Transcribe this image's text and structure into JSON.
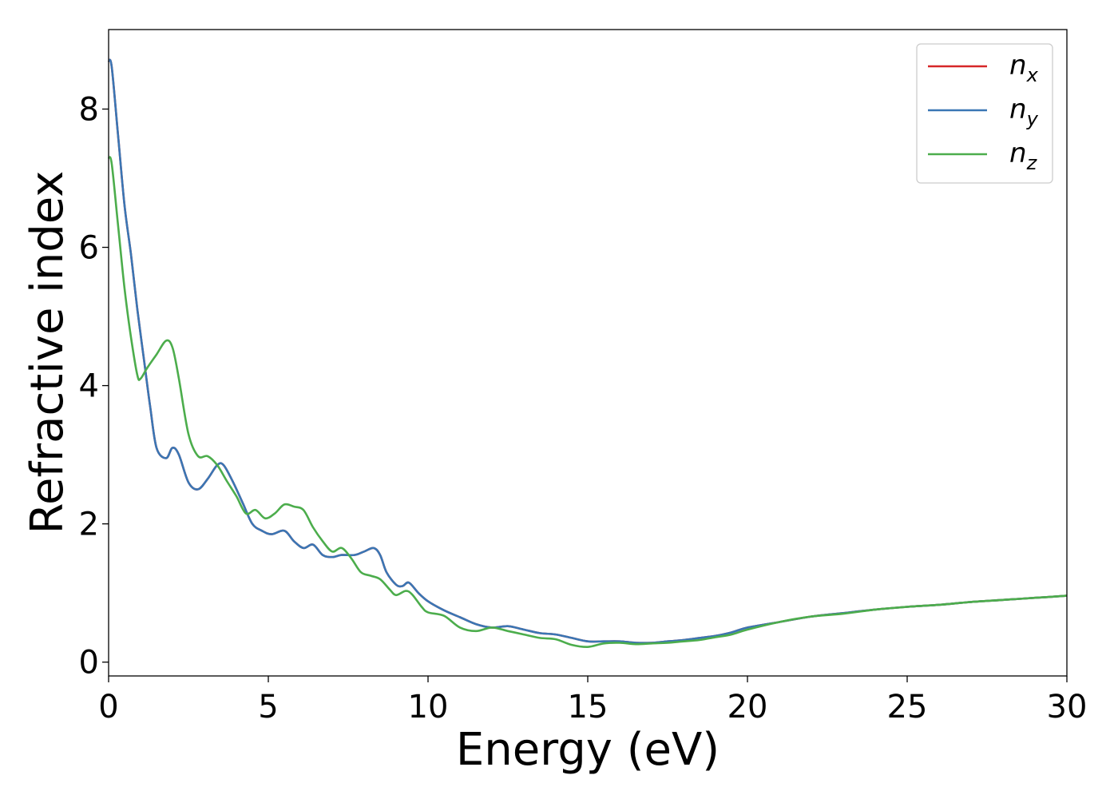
{
  "chart_data": {
    "type": "line",
    "xlabel": "Energy (eV)",
    "ylabel": "Refractive index",
    "xlim": [
      0,
      30
    ],
    "ylim": [
      -0.2,
      9.15
    ],
    "xticks": [
      0,
      5,
      10,
      15,
      20,
      25,
      30
    ],
    "yticks": [
      0,
      2,
      4,
      6,
      8
    ],
    "grid": false,
    "legend_position": "top-right",
    "legend": [
      {
        "base": "n",
        "sub": "x",
        "color": "#d62728"
      },
      {
        "base": "n",
        "sub": "y",
        "color": "#3a76b4"
      },
      {
        "base": "n",
        "sub": "z",
        "color": "#4cad4c"
      }
    ],
    "series": [
      {
        "name": "n_x",
        "color": "#d62728",
        "x": [
          0,
          0.1,
          0.3,
          0.5,
          0.7,
          0.9,
          1.1,
          1.3,
          1.5,
          1.8,
          2.0,
          2.2,
          2.5,
          2.8,
          3.1,
          3.4,
          3.6,
          3.9,
          4.2,
          4.5,
          4.8,
          5.1,
          5.5,
          5.8,
          6.1,
          6.4,
          6.7,
          7.0,
          7.3,
          7.7,
          8.0,
          8.3,
          8.5,
          8.7,
          9.0,
          9.2,
          9.4,
          9.7,
          10.0,
          10.5,
          11.0,
          11.5,
          12.0,
          12.5,
          13.0,
          13.5,
          14.0,
          14.5,
          15.0,
          15.5,
          16.0,
          16.5,
          17.0,
          17.5,
          18.0,
          18.5,
          19.0,
          19.5,
          20.0,
          21.0,
          22.0,
          23.0,
          24.0,
          25.0,
          26.0,
          27.0,
          28.0,
          29.0,
          30.0
        ],
        "values": [
          8.7,
          8.6,
          7.6,
          6.6,
          5.9,
          5.1,
          4.4,
          3.7,
          3.1,
          2.95,
          3.1,
          3.0,
          2.6,
          2.5,
          2.65,
          2.85,
          2.85,
          2.6,
          2.3,
          2.0,
          1.9,
          1.85,
          1.9,
          1.75,
          1.65,
          1.7,
          1.55,
          1.52,
          1.55,
          1.55,
          1.6,
          1.65,
          1.55,
          1.3,
          1.12,
          1.1,
          1.15,
          1.0,
          0.88,
          0.75,
          0.65,
          0.55,
          0.5,
          0.52,
          0.47,
          0.42,
          0.4,
          0.35,
          0.3,
          0.3,
          0.3,
          0.28,
          0.28,
          0.3,
          0.32,
          0.35,
          0.38,
          0.43,
          0.5,
          0.58,
          0.66,
          0.71,
          0.76,
          0.8,
          0.83,
          0.87,
          0.9,
          0.93,
          0.96
        ]
      },
      {
        "name": "n_y",
        "color": "#3a76b4",
        "x": [
          0,
          0.1,
          0.3,
          0.5,
          0.7,
          0.9,
          1.1,
          1.3,
          1.5,
          1.8,
          2.0,
          2.2,
          2.5,
          2.8,
          3.1,
          3.4,
          3.6,
          3.9,
          4.2,
          4.5,
          4.8,
          5.1,
          5.5,
          5.8,
          6.1,
          6.4,
          6.7,
          7.0,
          7.3,
          7.7,
          8.0,
          8.3,
          8.5,
          8.7,
          9.0,
          9.2,
          9.4,
          9.7,
          10.0,
          10.5,
          11.0,
          11.5,
          12.0,
          12.5,
          13.0,
          13.5,
          14.0,
          14.5,
          15.0,
          15.5,
          16.0,
          16.5,
          17.0,
          17.5,
          18.0,
          18.5,
          19.0,
          19.5,
          20.0,
          21.0,
          22.0,
          23.0,
          24.0,
          25.0,
          26.0,
          27.0,
          28.0,
          29.0,
          30.0
        ],
        "values": [
          8.7,
          8.6,
          7.6,
          6.6,
          5.9,
          5.1,
          4.4,
          3.7,
          3.1,
          2.95,
          3.1,
          3.0,
          2.6,
          2.5,
          2.65,
          2.85,
          2.85,
          2.6,
          2.3,
          2.0,
          1.9,
          1.85,
          1.9,
          1.75,
          1.65,
          1.7,
          1.55,
          1.52,
          1.55,
          1.55,
          1.6,
          1.65,
          1.55,
          1.3,
          1.12,
          1.1,
          1.15,
          1.0,
          0.88,
          0.75,
          0.65,
          0.55,
          0.5,
          0.52,
          0.47,
          0.42,
          0.4,
          0.35,
          0.3,
          0.3,
          0.3,
          0.28,
          0.28,
          0.3,
          0.32,
          0.35,
          0.38,
          0.43,
          0.5,
          0.58,
          0.66,
          0.71,
          0.76,
          0.8,
          0.83,
          0.87,
          0.9,
          0.93,
          0.96
        ]
      },
      {
        "name": "n_z",
        "color": "#4cad4c",
        "x": [
          0,
          0.1,
          0.3,
          0.5,
          0.7,
          0.9,
          1.0,
          1.2,
          1.5,
          1.8,
          2.0,
          2.2,
          2.5,
          2.8,
          3.1,
          3.4,
          3.7,
          4.0,
          4.3,
          4.6,
          4.9,
          5.2,
          5.5,
          5.8,
          6.1,
          6.4,
          6.7,
          7.0,
          7.3,
          7.6,
          7.9,
          8.2,
          8.5,
          8.8,
          9.0,
          9.3,
          9.5,
          9.8,
          10.0,
          10.5,
          11.0,
          11.5,
          12.0,
          12.5,
          13.0,
          13.5,
          14.0,
          14.5,
          15.0,
          15.5,
          16.0,
          16.5,
          17.0,
          17.5,
          18.0,
          18.5,
          19.0,
          19.5,
          20.0,
          21.0,
          22.0,
          23.0,
          24.0,
          25.0,
          26.0,
          27.0,
          28.0,
          29.0,
          30.0
        ],
        "values": [
          7.3,
          7.2,
          6.3,
          5.4,
          4.7,
          4.15,
          4.1,
          4.25,
          4.45,
          4.65,
          4.55,
          4.1,
          3.3,
          2.98,
          2.98,
          2.85,
          2.62,
          2.4,
          2.15,
          2.2,
          2.08,
          2.15,
          2.28,
          2.25,
          2.2,
          1.95,
          1.75,
          1.6,
          1.65,
          1.5,
          1.3,
          1.25,
          1.2,
          1.05,
          0.97,
          1.03,
          0.98,
          0.8,
          0.72,
          0.67,
          0.5,
          0.45,
          0.5,
          0.45,
          0.4,
          0.35,
          0.33,
          0.25,
          0.22,
          0.27,
          0.28,
          0.26,
          0.27,
          0.28,
          0.3,
          0.32,
          0.36,
          0.4,
          0.47,
          0.58,
          0.66,
          0.7,
          0.76,
          0.8,
          0.83,
          0.87,
          0.9,
          0.93,
          0.96
        ]
      }
    ]
  }
}
